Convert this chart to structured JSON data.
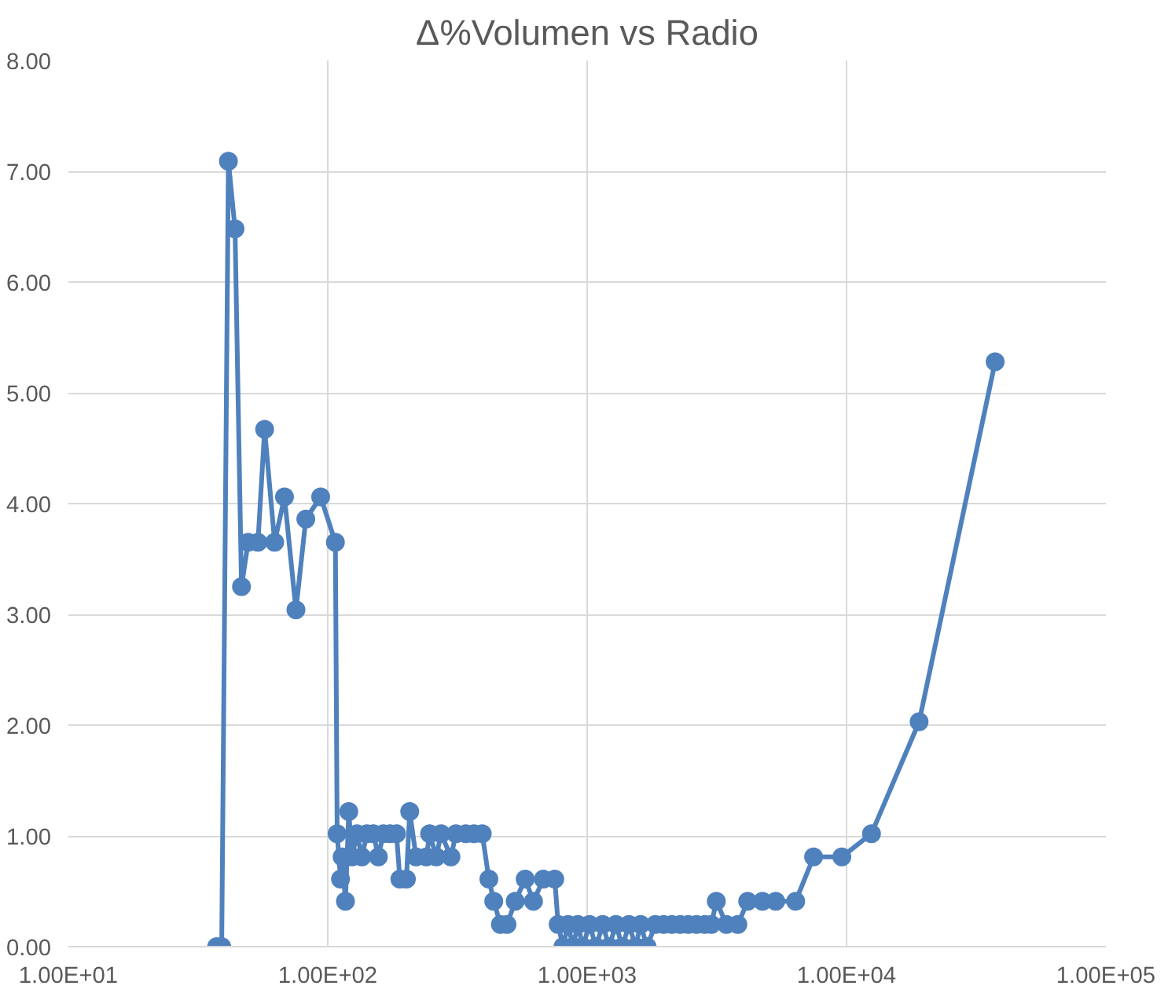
{
  "chart_data": {
    "type": "line",
    "title": "Δ%Volumen vs Radio",
    "log": "x",
    "grid": true,
    "marker": "circle",
    "line_style": "solid",
    "xlim": [
      10,
      100000
    ],
    "xticks": [
      {
        "value": 10,
        "label": "1.00E+01"
      },
      {
        "value": 100,
        "label": "1.00E+02"
      },
      {
        "value": 1000,
        "label": "1.00E+03"
      },
      {
        "value": 10000,
        "label": "1.00E+04"
      },
      {
        "value": 100000,
        "label": "1.00E+05"
      }
    ],
    "ylim": [
      0,
      8
    ],
    "yticks": [
      {
        "value": 0,
        "label": "0.00"
      },
      {
        "value": 1,
        "label": "1.00"
      },
      {
        "value": 2,
        "label": "2.00"
      },
      {
        "value": 3,
        "label": "3.00"
      },
      {
        "value": 4,
        "label": "4.00"
      },
      {
        "value": 5,
        "label": "5.00"
      },
      {
        "value": 6,
        "label": "6.00"
      },
      {
        "value": 7,
        "label": "7.00"
      },
      {
        "value": 8,
        "label": "8.00"
      }
    ],
    "x": [
      37.3,
      39,
      41.4,
      43.9,
      46.5,
      49.3,
      53.8,
      57.1,
      62.4,
      68.1,
      75.4,
      82.3,
      93.9,
      107,
      108.7,
      112,
      113.6,
      117,
      120.5,
      124,
      129.6,
      135.4,
      141.5,
      150,
      156.7,
      163.7,
      173.7,
      184,
      189.7,
      201,
      207,
      219,
      240,
      247,
      262,
      273.5,
      298.5,
      312,
      340.5,
      366,
      394,
      418,
      436.5,
      463,
      491,
      528,
      577,
      621,
      678,
      750,
      773,
      807,
      844,
      882,
      921,
      962,
      1021,
      1082,
      1148,
      1216,
      1291,
      1368,
      1449,
      1538,
      1607,
      1702,
      1832,
      1972,
      2123,
      2286,
      2455,
      2642,
      2844,
      3013,
      3148,
      3443,
      3811,
      4159,
      4742,
      5333,
      6368,
      7464,
      9594,
      12480,
      19050,
      37410
    ],
    "series": [
      {
        "color": "#4f81bd",
        "values": [
          0,
          0,
          7.09,
          6.48,
          3.25,
          3.65,
          3.65,
          4.67,
          3.65,
          4.06,
          3.04,
          3.86,
          4.06,
          3.65,
          1.02,
          0.61,
          0.81,
          0.41,
          1.22,
          0.81,
          1.02,
          0.81,
          1.02,
          1.02,
          0.81,
          1.02,
          1.02,
          1.02,
          0.61,
          0.61,
          1.22,
          0.81,
          0.81,
          1.02,
          0.81,
          1.02,
          0.81,
          1.02,
          1.02,
          1.02,
          1.02,
          0.61,
          0.41,
          0.2,
          0.2,
          0.41,
          0.61,
          0.41,
          0.61,
          0.61,
          0.2,
          0,
          0.2,
          0,
          0.2,
          0,
          0.2,
          0,
          0.2,
          0,
          0.2,
          0,
          0.2,
          0,
          0.2,
          0,
          0.2,
          0.2,
          0.2,
          0.2,
          0.2,
          0.2,
          0.2,
          0.2,
          0.41,
          0.2,
          0.2,
          0.41,
          0.41,
          0.41,
          0.41,
          0.81,
          0.81,
          1.02,
          2.03,
          5.28
        ]
      }
    ]
  }
}
